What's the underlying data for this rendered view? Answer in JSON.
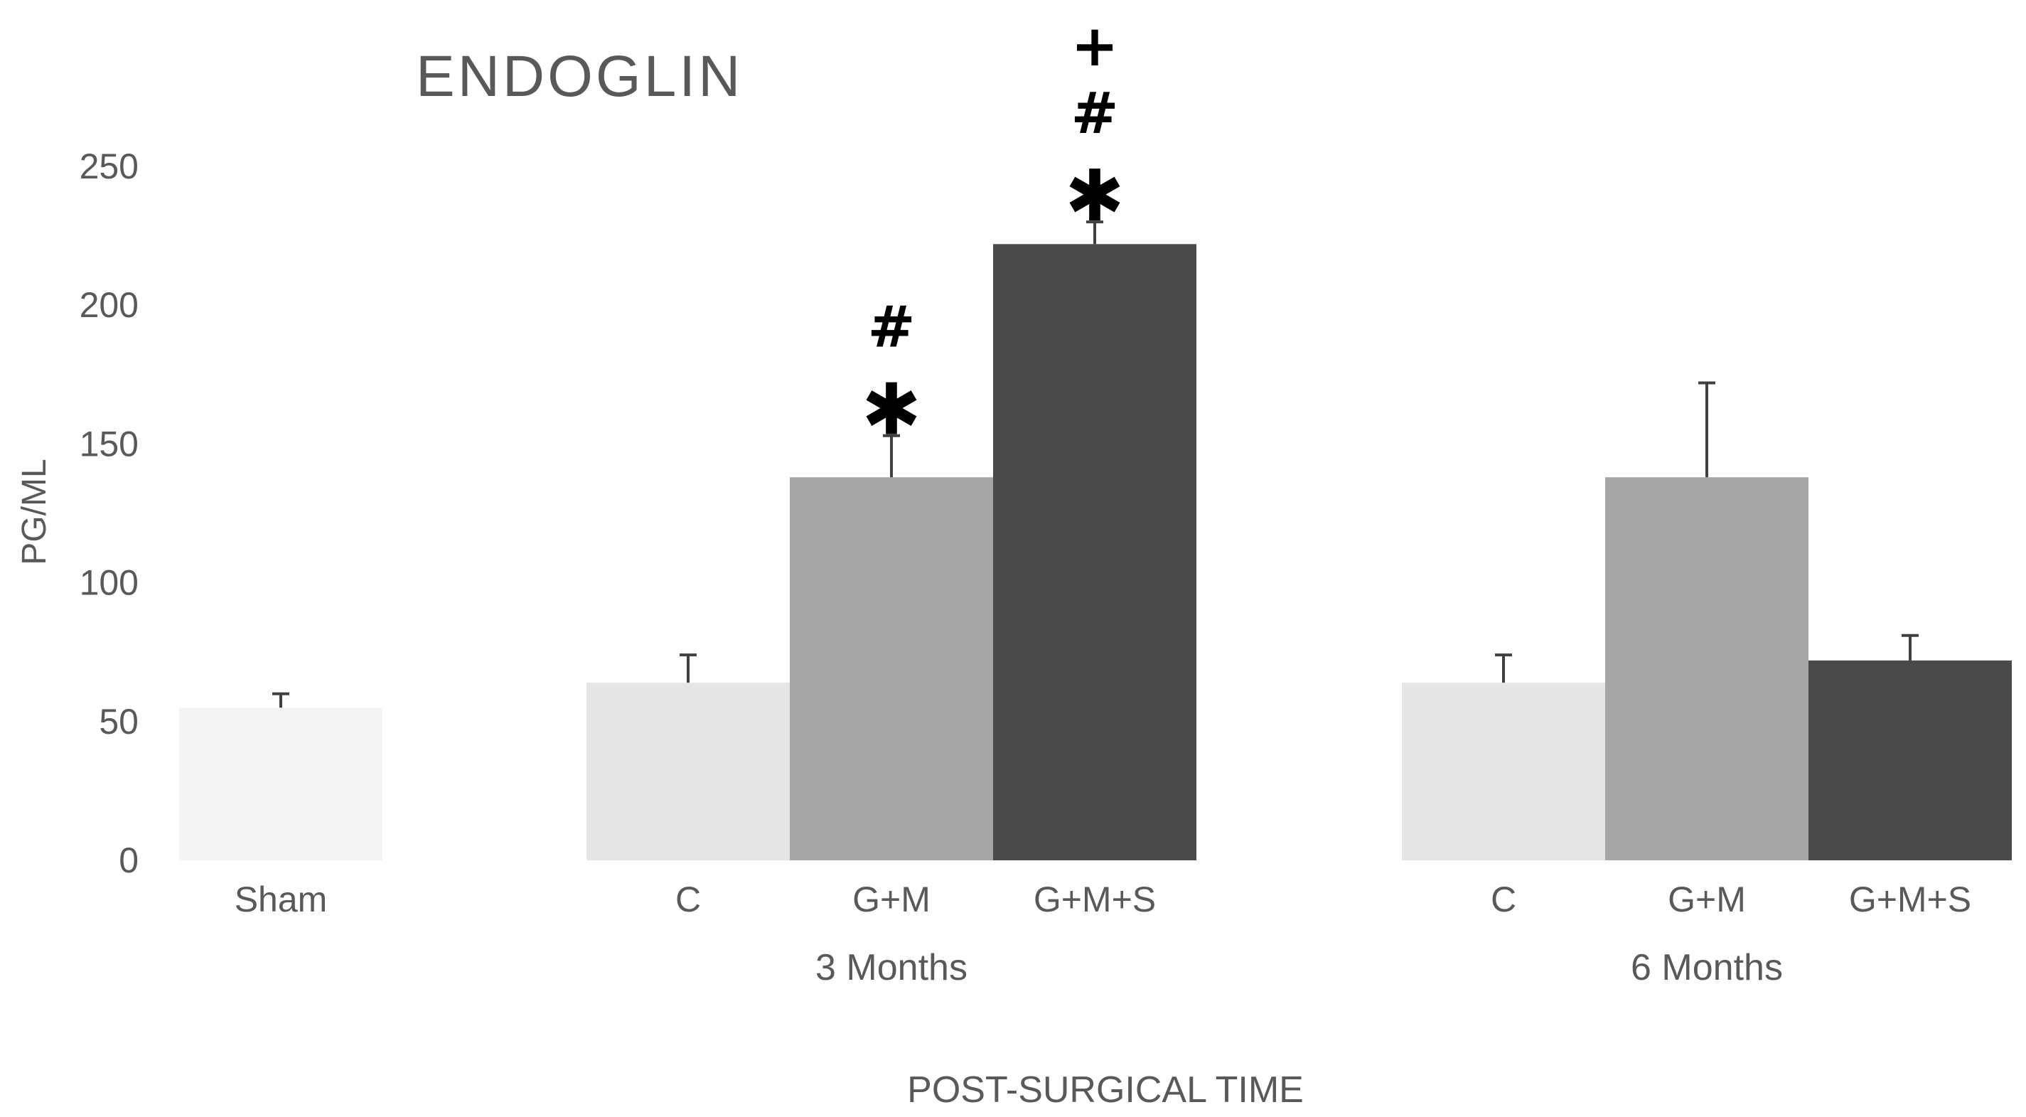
{
  "chart_data": {
    "type": "bar",
    "title": "ENDOGLIN",
    "ylabel": "PG/ML",
    "xlabel": "POST-SURGICAL TIME",
    "ylim": [
      0,
      250
    ],
    "yticks": [
      0,
      50,
      100,
      150,
      200,
      250
    ],
    "grid": false,
    "groups": [
      {
        "label": "",
        "bars": [
          {
            "label": "Sham",
            "value": 55,
            "error": 5,
            "color": "#f4f4f4",
            "marks": []
          }
        ]
      },
      {
        "label": "3 Months",
        "bars": [
          {
            "label": "C",
            "value": 64,
            "error": 10,
            "color": "#e6e6e6",
            "marks": []
          },
          {
            "label": "G+M",
            "value": 138,
            "error": 15,
            "color": "#a6a6a6",
            "marks": [
              "*",
              "#"
            ]
          },
          {
            "label": "G+M+S",
            "value": 222,
            "error": 8,
            "color": "#4a4a4a",
            "marks": [
              "*",
              "#",
              "+"
            ]
          }
        ]
      },
      {
        "label": "6 Months",
        "bars": [
          {
            "label": "C",
            "value": 64,
            "error": 10,
            "color": "#e6e6e6",
            "marks": []
          },
          {
            "label": "G+M",
            "value": 138,
            "error": 34,
            "color": "#a6a6a6",
            "marks": []
          },
          {
            "label": "G+M+S",
            "value": 72,
            "error": 9,
            "color": "#4a4a4a",
            "marks": []
          }
        ]
      }
    ]
  }
}
